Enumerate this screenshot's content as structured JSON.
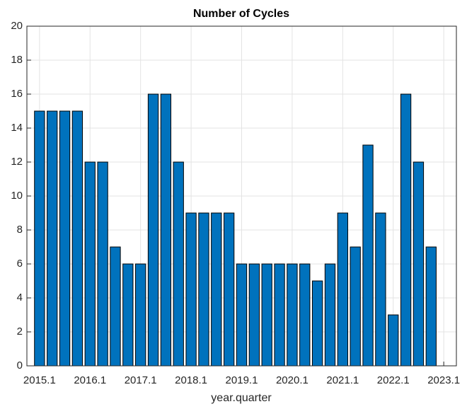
{
  "chart_data": {
    "type": "bar",
    "title": "Number of Cycles",
    "x_label": "year.quarter",
    "x": [
      1,
      2,
      3,
      4,
      5,
      6,
      7,
      8,
      9,
      10,
      11,
      12,
      13,
      14,
      15,
      16,
      17,
      18,
      19,
      20,
      21,
      22,
      23,
      24,
      25,
      26,
      27,
      28,
      29,
      30,
      31,
      32
    ],
    "values": [
      15,
      15,
      15,
      15,
      12,
      12,
      7,
      6,
      6,
      16,
      16,
      12,
      9,
      9,
      9,
      9,
      6,
      6,
      6,
      6,
      6,
      6,
      5,
      6,
      9,
      7,
      13,
      9,
      3,
      16,
      12,
      7
    ],
    "color": "#0072bd",
    "xlim": [
      0,
      34
    ],
    "xticks": [
      {
        "value": 1,
        "label": "2015.1"
      },
      {
        "value": 5,
        "label": "2016.1"
      },
      {
        "value": 9,
        "label": "2017.1"
      },
      {
        "value": 13,
        "label": "2018.1"
      },
      {
        "value": 17,
        "label": "2019.1"
      },
      {
        "value": 21,
        "label": "2020.1"
      },
      {
        "value": 25,
        "label": "2021.1"
      },
      {
        "value": 29,
        "label": "2022.1"
      },
      {
        "value": 33,
        "label": "2023.1"
      }
    ],
    "ylim": [
      0,
      20
    ],
    "yticks": [
      0,
      2,
      4,
      6,
      8,
      10,
      12,
      14,
      16,
      18,
      20
    ],
    "grid": true
  }
}
